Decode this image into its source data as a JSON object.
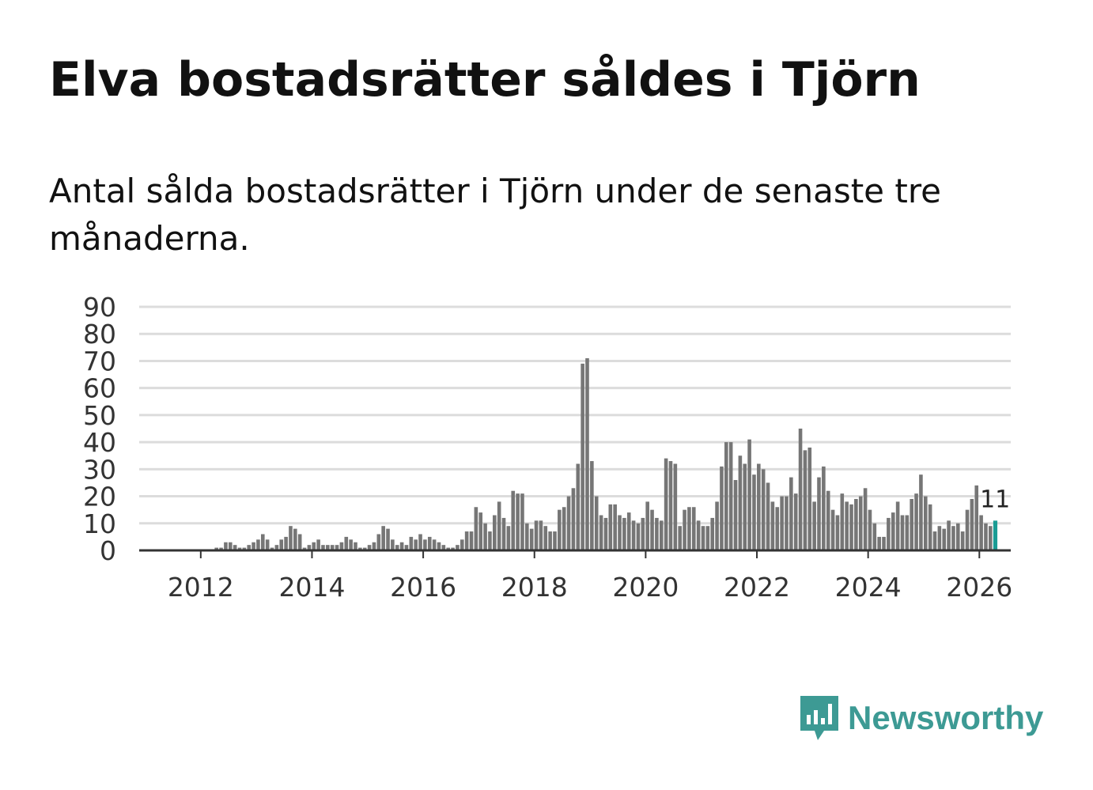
{
  "title": "Elva bostadsrätter såldes i Tjörn",
  "subtitle": "Antal sålda bostadsrätter i Tjörn under de senaste tre månaderna.",
  "brand": {
    "name": "Newsworthy",
    "color": "#3d9a94"
  },
  "chart_data": {
    "type": "bar",
    "title": "Elva bostadsrätter såldes i Tjörn",
    "xlabel": "",
    "ylabel": "",
    "ylim": [
      0,
      90
    ],
    "y_ticks": [
      0,
      10,
      20,
      30,
      40,
      50,
      60,
      70,
      80,
      90
    ],
    "x_tick_labels": [
      "2012",
      "2014",
      "2016",
      "2018",
      "2020",
      "2022",
      "2024",
      "2026"
    ],
    "start": "2011-01",
    "end": "2026-02",
    "grid": true,
    "bar_color": "#767676",
    "highlight_color": "#1a9c94",
    "highlight_label": "11",
    "values": [
      0,
      0,
      0,
      0,
      0,
      0,
      0,
      0,
      0,
      0,
      0,
      0,
      0,
      0,
      0,
      1,
      1,
      3,
      3,
      2,
      1,
      1,
      2,
      3,
      4,
      6,
      4,
      1,
      2,
      4,
      5,
      9,
      8,
      6,
      1,
      2,
      3,
      4,
      2,
      2,
      2,
      2,
      3,
      5,
      4,
      3,
      1,
      1,
      2,
      3,
      6,
      9,
      8,
      4,
      2,
      3,
      2,
      5,
      4,
      6,
      4,
      5,
      4,
      3,
      2,
      1,
      1,
      2,
      4,
      7,
      7,
      16,
      14,
      10,
      7,
      13,
      18,
      12,
      9,
      22,
      21,
      21,
      10,
      8,
      11,
      11,
      9,
      7,
      7,
      15,
      16,
      20,
      23,
      32,
      69,
      71,
      33,
      20,
      13,
      12,
      17,
      17,
      13,
      12,
      14,
      11,
      10,
      12,
      18,
      15,
      12,
      11,
      34,
      33,
      32,
      9,
      15,
      16,
      16,
      11,
      9,
      9,
      12,
      18,
      31,
      40,
      40,
      26,
      35,
      32,
      41,
      28,
      32,
      30,
      25,
      18,
      16,
      20,
      20,
      27,
      21,
      45,
      37,
      38,
      18,
      27,
      31,
      22,
      15,
      13,
      21,
      18,
      17,
      19,
      20,
      23,
      15,
      10,
      5,
      5,
      12,
      14,
      18,
      13,
      13,
      19,
      21,
      28,
      20,
      17,
      7,
      9,
      8,
      11,
      9,
      10,
      7,
      15,
      19,
      24,
      13,
      10,
      9,
      11
    ]
  }
}
